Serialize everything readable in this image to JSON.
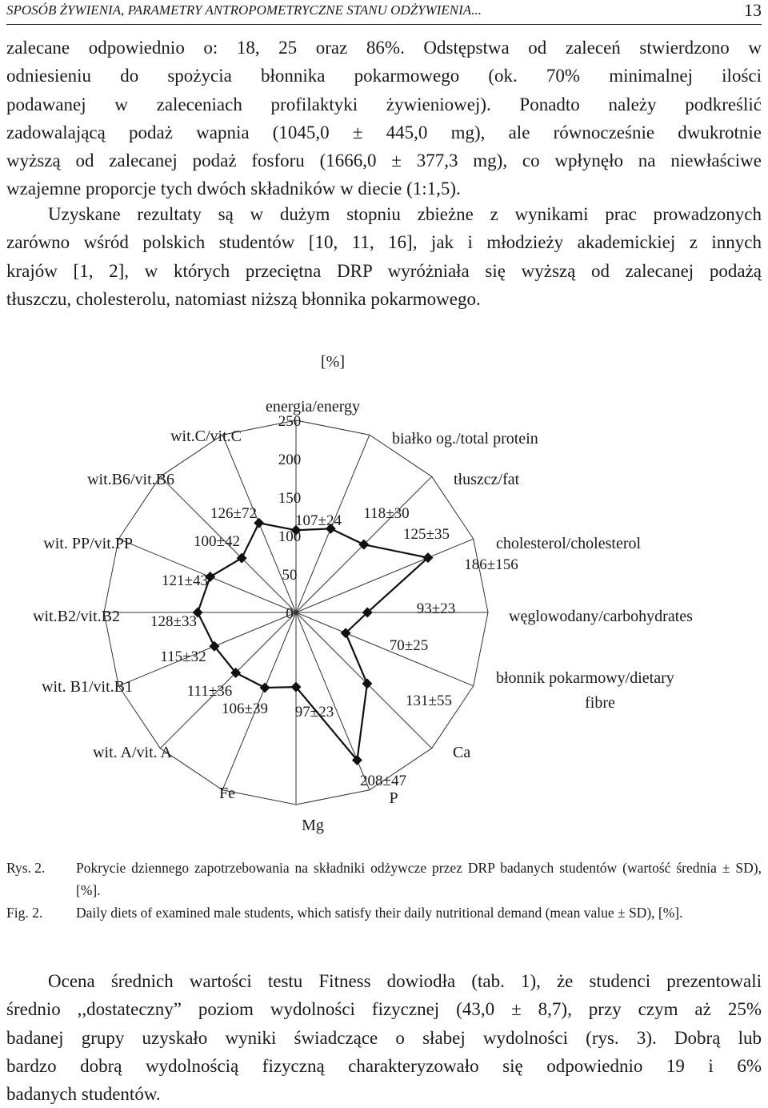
{
  "header": {
    "title": "SPOSÓB ŻYWIENIA, PARAMETRY ANTROPOMETRYCZNE STANU ODŻYWIENIA...",
    "page_number": "13"
  },
  "para1": {
    "lines": [
      "zalecane odpowiednio o: 18, 25 oraz 86%. Odstępstwa od zaleceń stwierdzono w",
      "odniesieniu do spożycia błonnika pokarmowego (ok. 70% minimalnej ilości",
      "podawanej w zaleceniach profilaktyki żywieniowej). Ponadto należy podkreślić",
      "zadowalającą podaż wapnia (1045,0 ± 445,0 mg), ale równocześnie dwukrotnie",
      "wyższą od zalecanej podaż fosforu (1666,0 ± 377,3 mg), co wpłynęło na niewłaściwe",
      "wzajemne proporcje tych dwóch składników w diecie (1:1,5)."
    ]
  },
  "para2": {
    "lines": [
      "Uzyskane rezultaty są w dużym stopniu zbieżne z wynikami prac prowadzonych",
      "zarówno wśród polskich studentów [10, 11, 16], jak i młodzieży akademickiej z innych",
      "krajów [1, 2], w których przeciętna DRP wyróżniała się wyższą od zalecanej podażą",
      "tłuszczu, cholesterolu, natomiast niższą błonnika pokarmowego."
    ]
  },
  "chart_data": {
    "type": "radar",
    "unit_label": "[%]",
    "scale_ticks": [
      "0",
      "50",
      "100",
      "150",
      "200",
      "250"
    ],
    "categories": [
      {
        "label": "energia/energy",
        "value": 107,
        "value_label": "107±24"
      },
      {
        "label": "białko og./total protein",
        "value": 118,
        "value_label": "118±30"
      },
      {
        "label": "tłuszcz/fat",
        "value": 125,
        "value_label": "125±35"
      },
      {
        "label": "cholesterol/cholesterol",
        "value": 186,
        "value_label": "186±156"
      },
      {
        "label": "węglowodany/carbohydrates",
        "value": 93,
        "value_label": "93±23"
      },
      {
        "label": "błonnik pokarmowy/dietary fibre",
        "value": 70,
        "value_label": "70±25"
      },
      {
        "label": "Ca",
        "value": 131,
        "value_label": "131±55"
      },
      {
        "label": "P",
        "value": 208,
        "value_label": "208±47"
      },
      {
        "label": "Mg",
        "value": 97,
        "value_label": "97±23"
      },
      {
        "label": "Fe",
        "value": 106,
        "value_label": "106±39"
      },
      {
        "label": "wit. A/vit. A",
        "value": 111,
        "value_label": "111±36"
      },
      {
        "label": "wit. B1/vit.B1",
        "value": 115,
        "value_label": "115±32"
      },
      {
        "label": "wit.B2/vit.B2",
        "value": 128,
        "value_label": "128±33"
      },
      {
        "label": "wit. PP/vit.PP",
        "value": 121,
        "value_label": "121±43"
      },
      {
        "label": "wit.B6/vit.B6",
        "value": 100,
        "value_label": "100±42"
      },
      {
        "label": "wit.C/vit.C",
        "value": 126,
        "value_label": "126±72"
      }
    ],
    "rmax": 250,
    "grid": true
  },
  "caption": {
    "pl_label": "Rys. 2.",
    "pl_text": "Pokrycie dziennego zapotrzebowania na składniki odżywcze przez DRP badanych studentów (wartość średnia ± SD), [%].",
    "en_label": "Fig. 2.",
    "en_text": "Daily diets of examined male students, which satisfy their daily nutritional demand (mean value ± SD), [%]."
  },
  "para3": {
    "lines": [
      "Ocena średnich wartości testu Fitness dowiodła (tab. 1), że studenci prezentowali",
      "średnio ,,dostateczny” poziom wydolności fizycznej (43,0 ± 8,7), przy czym aż 25%",
      "badanej grupy uzyskało wyniki świadczące o słabej wydolności (rys. 3). Dobrą lub",
      "bardzo dobrą wydolnością fizyczną charakteryzowało się odpowiednio 19 i 6%",
      "badanych studentów."
    ]
  }
}
